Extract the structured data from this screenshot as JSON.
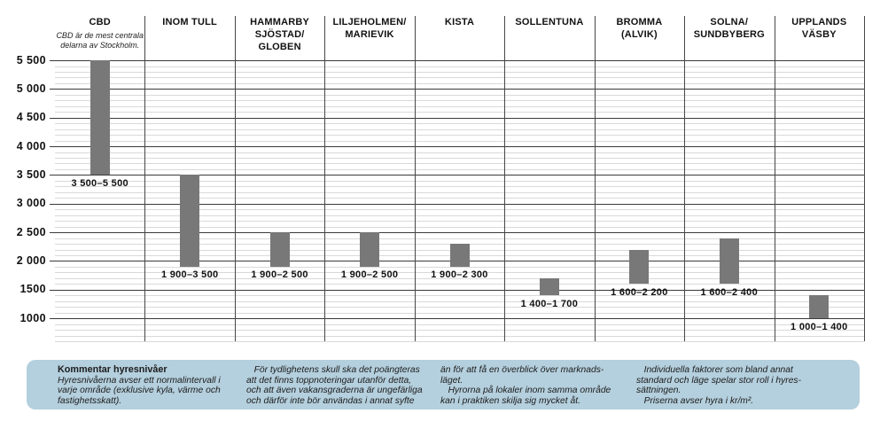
{
  "chart_data": {
    "type": "bar",
    "subtype": "floating-range-bars",
    "title": "",
    "ylabel": "hyra i kr/m²",
    "ylim": [
      600,
      5500
    ],
    "grid": "on",
    "legend": "none",
    "y_axis": {
      "plot_min": 600,
      "plot_max": 5500,
      "minor_step": 100,
      "major_ticks": [
        {
          "value": 5500,
          "label": "5 500"
        },
        {
          "value": 5000,
          "label": "5 000"
        },
        {
          "value": 4500,
          "label": "4 500"
        },
        {
          "value": 4000,
          "label": "4 000"
        },
        {
          "value": 3500,
          "label": "3 500"
        },
        {
          "value": 3000,
          "label": "3 000"
        },
        {
          "value": 2500,
          "label": "2 500"
        },
        {
          "value": 2000,
          "label": "2 000"
        },
        {
          "value": 1500,
          "label": "1500"
        },
        {
          "value": 1000,
          "label": "1000"
        }
      ]
    },
    "columns": [
      {
        "header": "CBD",
        "subtitle": "CBD är de mest centrala\ndelarna av Stockholm.",
        "min": 3500,
        "max": 5500,
        "range_label": "3 500–5 500"
      },
      {
        "header": "INOM TULL",
        "subtitle": "",
        "min": 1900,
        "max": 3500,
        "range_label": "1 900–3 500"
      },
      {
        "header": "HAMMARBY\nSJÖSTAD/\nGLOBEN",
        "subtitle": "",
        "min": 1900,
        "max": 2500,
        "range_label": "1 900–2 500"
      },
      {
        "header": "LILJEHOLMEN/\nMARIEVIK",
        "subtitle": "",
        "min": 1900,
        "max": 2500,
        "range_label": "1 900–2 500"
      },
      {
        "header": "KISTA",
        "subtitle": "",
        "min": 1900,
        "max": 2300,
        "range_label": "1 900–2 300"
      },
      {
        "header": "SOLLENTUNA",
        "subtitle": "",
        "min": 1400,
        "max": 1700,
        "range_label": "1 400–1 700"
      },
      {
        "header": "BROMMA\n(ALVIK)",
        "subtitle": "",
        "min": 1600,
        "max": 2200,
        "range_label": "1 600–2 200"
      },
      {
        "header": "SOLNA/\nSUNDBYBERG",
        "subtitle": "",
        "min": 1600,
        "max": 2400,
        "range_label": "1 600–2 400"
      },
      {
        "header": "UPPLANDS\nVÄSBY",
        "subtitle": "",
        "min": 1000,
        "max": 1400,
        "range_label": "1 000–1 400"
      }
    ]
  },
  "colors": {
    "bar": "#787878",
    "major_grid": "#3a3a3a",
    "minor_grid": "#d9d9d9",
    "separator": "#474747",
    "comment_box_bg": "#b4cfdd",
    "text": "#111111"
  },
  "comment_box": {
    "title": "Kommentar hyresnivåer",
    "col1": "Hyresnivåerna avser ett normalintervall i\nvarje område (exklusive kyla, värme och\nfastighetsskatt).",
    "col2": "   För tydlighetens skull ska det poängteras\natt det finns toppnoteringar utanför detta,\noch att även vakansgraderna är ungefärliga\noch därför inte bör användas i annat syfte",
    "col3": "än för att få en överblick över marknads-\nläget.\n   Hyrorna på lokaler inom samma område\nkan i praktiken skilja sig mycket åt.",
    "col4": "   Individuella faktorer som bland annat\nstandard och läge spelar stor roll i hyres-\nsättningen.\n   Priserna avser hyra i kr/m²."
  }
}
